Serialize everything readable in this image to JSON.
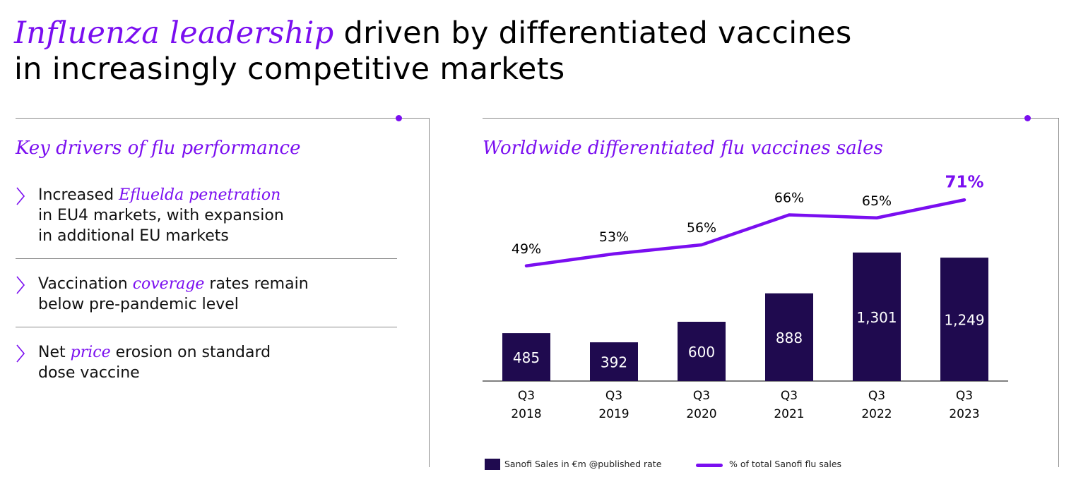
{
  "header": {
    "title_highlight": "Influenza leadership",
    "title_rest_line1": " driven by differentiated vaccines",
    "title_line2": "in increasingly competitive markets"
  },
  "colors": {
    "accent": "#7a0ef0",
    "bar": "#1f0a4f",
    "frame": "#8a8a8a"
  },
  "left_panel": {
    "title": "Key drivers of flu performance",
    "chevron_icon": "chevron-right-icon",
    "drivers": [
      {
        "pre": "Increased ",
        "em": "Efluelda penetration",
        "post": "",
        "line2": "in EU4 markets, with expansion",
        "line3": "in additional EU markets"
      },
      {
        "pre": "Vaccination ",
        "em": "coverage",
        "post": " rates remain",
        "line2": "below pre-pandemic level",
        "line3": ""
      },
      {
        "pre": "Net ",
        "em": "price",
        "post": " erosion on standard",
        "line2": "dose vaccine",
        "line3": ""
      }
    ]
  },
  "right_panel": {
    "title": "Worldwide differentiated flu vaccines sales",
    "legend": {
      "bars_label": "Sanofi Sales in €m @published rate",
      "line_label": "% of total Sanofi flu sales"
    }
  },
  "chart_data": {
    "type": "bar",
    "categories": [
      [
        "Q3",
        "2018"
      ],
      [
        "Q3",
        "2019"
      ],
      [
        "Q3",
        "2020"
      ],
      [
        "Q3",
        "2021"
      ],
      [
        "Q3",
        "2022"
      ],
      [
        "Q3",
        "2023"
      ]
    ],
    "series": [
      {
        "name": "Sanofi Sales in €m @published rate",
        "type": "bar",
        "values": [
          485,
          392,
          600,
          888,
          1301,
          1249
        ],
        "labels": [
          "485",
          "392",
          "600",
          "888",
          "1,301",
          "1,249"
        ]
      },
      {
        "name": "% of total Sanofi flu sales",
        "type": "line",
        "values": [
          49,
          53,
          56,
          66,
          65,
          71
        ],
        "labels": [
          "49%",
          "53%",
          "56%",
          "66%",
          "65%",
          "71%"
        ],
        "highlight_last": true
      }
    ],
    "bar_ylim": [
      0,
      1500
    ],
    "line_ylim": [
      0,
      100
    ],
    "legend_position": "bottom",
    "grid": false
  }
}
